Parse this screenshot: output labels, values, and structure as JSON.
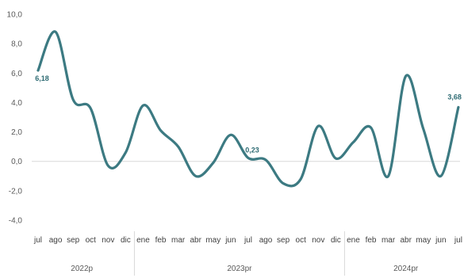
{
  "chart_data": {
    "type": "line",
    "title": "",
    "xlabel": "",
    "ylabel": "",
    "ylim": [
      -4.0,
      10.0
    ],
    "yticks": [
      "10,0",
      "8,0",
      "6,0",
      "4,0",
      "2,0",
      "0,0",
      "-2,0",
      "-4,0"
    ],
    "ytick_values": [
      10,
      8,
      6,
      4,
      2,
      0,
      -2,
      -4
    ],
    "grid": false,
    "legend": "none",
    "line_color": "#3c7a82",
    "label_color": "#2e6b73",
    "categories": [
      "jul",
      "ago",
      "sep",
      "oct",
      "nov",
      "dic",
      "ene",
      "feb",
      "mar",
      "abr",
      "may",
      "jun",
      "jul",
      "ago",
      "sep",
      "oct",
      "nov",
      "dic",
      "ene",
      "feb",
      "mar",
      "abr",
      "may",
      "jun",
      "jul"
    ],
    "groups": [
      {
        "label": "2022p",
        "start": 0,
        "end": 5
      },
      {
        "label": "2023pr",
        "start": 6,
        "end": 17
      },
      {
        "label": "2024pr",
        "start": 18,
        "end": 24
      }
    ],
    "series": [
      {
        "values": [
          6.18,
          8.8,
          4.2,
          3.6,
          -0.3,
          0.6,
          3.8,
          2.1,
          1.0,
          -1.0,
          -0.1,
          1.8,
          0.23,
          0.1,
          -1.5,
          -1.2,
          2.4,
          0.2,
          1.3,
          2.3,
          -1.0,
          5.8,
          2.2,
          -1.0,
          3.68
        ]
      }
    ],
    "data_labels": [
      {
        "index": 0,
        "text": "6,18"
      },
      {
        "index": 12,
        "text": "0,23"
      },
      {
        "index": 24,
        "text": "3,68"
      }
    ]
  }
}
